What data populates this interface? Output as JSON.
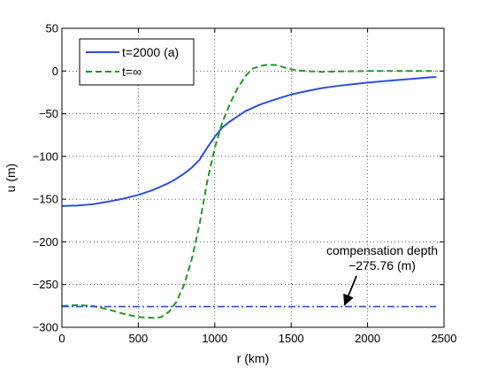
{
  "chart_data": {
    "type": "line",
    "title": "",
    "xlabel": "r (km)",
    "ylabel": "u (m)",
    "xlim": [
      0,
      2500
    ],
    "ylim": [
      -300,
      50
    ],
    "x_ticks": [
      0,
      500,
      1000,
      1500,
      2000,
      2500
    ],
    "y_ticks": [
      50,
      0,
      -50,
      -100,
      -150,
      -200,
      -250,
      -300
    ],
    "grid": true,
    "legend_position": "top-left",
    "series": [
      {
        "name": "t=2000 (a)",
        "color": "#2a4fe0",
        "style": "solid",
        "x": [
          0,
          100,
          200,
          300,
          400,
          500,
          600,
          700,
          750,
          800,
          850,
          900,
          950,
          1000,
          1050,
          1100,
          1150,
          1200,
          1300,
          1400,
          1500,
          1600,
          1700,
          1800,
          1900,
          2000,
          2100,
          2200,
          2300,
          2400,
          2450
        ],
        "y": [
          -158,
          -157.5,
          -156,
          -153,
          -149.5,
          -145,
          -139,
          -131,
          -126,
          -120,
          -113,
          -104,
          -90,
          -77,
          -66,
          -59,
          -53,
          -47,
          -39,
          -33,
          -27.5,
          -23.5,
          -20,
          -17.5,
          -15.5,
          -13.5,
          -12,
          -10.5,
          -9,
          -7.5,
          -7
        ]
      },
      {
        "name": "t=∞",
        "color": "#1f9a1f",
        "style": "dashed",
        "x": [
          0,
          100,
          200,
          300,
          400,
          500,
          600,
          650,
          700,
          750,
          800,
          850,
          900,
          950,
          1000,
          1050,
          1100,
          1150,
          1200,
          1250,
          1300,
          1350,
          1400,
          1450,
          1500,
          1550,
          1600,
          1700,
          1800,
          2000,
          2200,
          2450
        ],
        "y": [
          -275,
          -274,
          -275,
          -279,
          -284,
          -288,
          -289,
          -288,
          -282,
          -270,
          -250,
          -220,
          -180,
          -130,
          -90,
          -60,
          -38,
          -20,
          -6,
          3,
          6,
          7.5,
          7,
          4.5,
          2,
          0.5,
          0,
          -1,
          -0.5,
          0,
          0,
          0
        ]
      },
      {
        "name": "",
        "color": "#2a4fe0",
        "style": "dashdot",
        "x": [
          0,
          2450
        ],
        "y": [
          -275.76,
          -275.76
        ]
      }
    ],
    "legend": [
      {
        "label": "t=2000 (a)",
        "series_index": 0
      },
      {
        "label": "t=∞",
        "series_index": 1
      }
    ],
    "annotations": [
      {
        "line1": "compensation depth",
        "line2": "−275.76 (m)",
        "arrow_to_x": 1850,
        "arrow_to_y": -275.76
      }
    ]
  }
}
